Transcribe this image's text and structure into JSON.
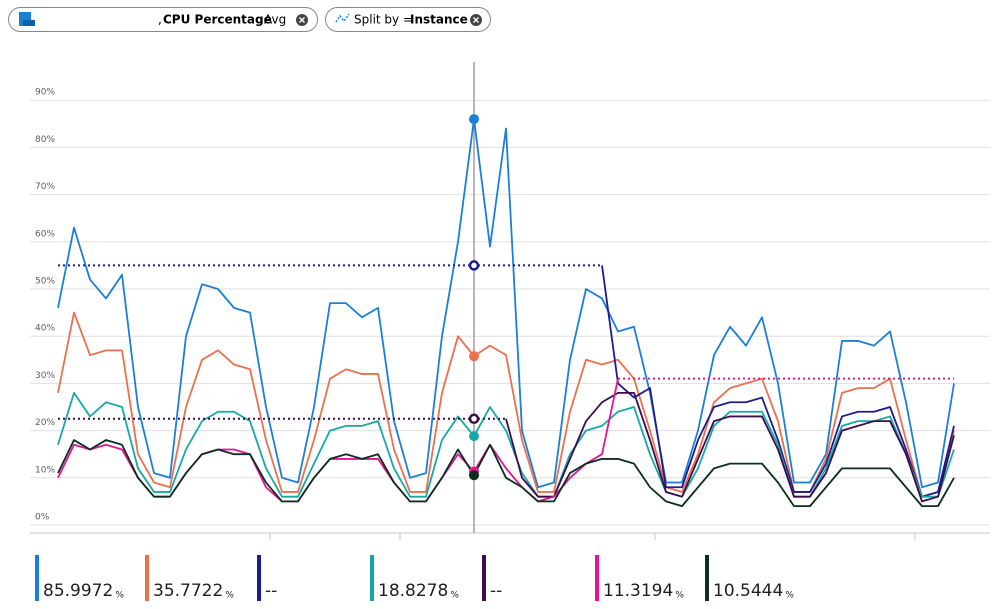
{
  "chart_data": {
    "type": "line",
    "filter_pill": {
      "prefix": ",",
      "metric": "CPU Percentage",
      "separator": ",",
      "aggregation": "Avg"
    },
    "split_pill": {
      "label": "Split by = ",
      "value": "Instance"
    },
    "ylim": [
      0,
      100
    ],
    "yticks": [
      {
        "value": 0,
        "label": "0%"
      },
      {
        "value": 10,
        "label": "10%"
      },
      {
        "value": 20,
        "label": "20%"
      },
      {
        "value": 30,
        "label": "30%"
      },
      {
        "value": 40,
        "label": "40%"
      },
      {
        "value": 50,
        "label": "50%"
      },
      {
        "value": 60,
        "label": "60%"
      },
      {
        "value": 70,
        "label": "70%"
      },
      {
        "value": 80,
        "label": "80%"
      },
      {
        "value": 90,
        "label": "90%"
      }
    ],
    "grid": true,
    "gaps": "dotted",
    "crosshair_index": 26,
    "legend_unit": "%",
    "categories": [
      null,
      null,
      null,
      null,
      null,
      null,
      null,
      null,
      null,
      null,
      null,
      null,
      null,
      null,
      null,
      null,
      null,
      null,
      null,
      null,
      null,
      null,
      null,
      null,
      null,
      null,
      null,
      null,
      null,
      null,
      null,
      null,
      null,
      null,
      null,
      null,
      null,
      null,
      null,
      null,
      null,
      null,
      null,
      null,
      null,
      null,
      null,
      null,
      null,
      null,
      null,
      null,
      null,
      null,
      null,
      null,
      null
    ],
    "series": [
      {
        "color": "#1b7fd6",
        "value_label": "85.9972",
        "values": [
          46,
          63,
          52,
          48,
          53,
          25,
          11,
          10,
          40,
          51,
          50,
          46,
          45,
          25,
          10,
          9,
          25,
          47,
          47,
          44,
          46,
          22,
          10,
          11,
          40,
          60,
          85.9972,
          59,
          84,
          20,
          8,
          9,
          35,
          50,
          48,
          41,
          42,
          28,
          9,
          9,
          20,
          36,
          42,
          38,
          44,
          30,
          9,
          9,
          15,
          39,
          39,
          38,
          41,
          26,
          8,
          9,
          30
        ]
      },
      {
        "color": "#e8714f",
        "value_label": "35.7722",
        "values": [
          28,
          45,
          36,
          37,
          37,
          15,
          9,
          8,
          25,
          35,
          37,
          34,
          33,
          18,
          7,
          7,
          18,
          31,
          33,
          32,
          32,
          16,
          7,
          7,
          28,
          40,
          35.7722,
          38,
          36,
          18,
          7,
          7,
          24,
          35,
          34,
          35,
          31,
          20,
          8,
          7,
          15,
          26,
          29,
          30,
          31,
          22,
          7,
          7,
          14,
          28,
          29,
          29,
          31,
          18,
          6,
          7,
          20
        ]
      },
      {
        "color": "#1c1c8e",
        "value_label": "--",
        "values": [
          55,
          null,
          null,
          null,
          null,
          null,
          null,
          null,
          null,
          null,
          null,
          null,
          null,
          null,
          null,
          null,
          null,
          null,
          null,
          null,
          null,
          null,
          null,
          null,
          null,
          null,
          null,
          null,
          null,
          null,
          null,
          null,
          null,
          null,
          55,
          30,
          27,
          29,
          8,
          8,
          18,
          25,
          26,
          26,
          27,
          18,
          7,
          7,
          13,
          23,
          24,
          24,
          25,
          16,
          6,
          7,
          21
        ]
      },
      {
        "color": "#16a8a8",
        "value_label": "18.8278",
        "values": [
          17,
          28,
          23,
          26,
          25,
          12,
          7,
          7,
          16,
          22,
          24,
          24,
          22,
          12,
          6,
          6,
          13,
          20,
          21,
          21,
          22,
          12,
          6,
          6,
          18,
          23,
          18.8278,
          25,
          20,
          11,
          6,
          6,
          15,
          20,
          21,
          24,
          25,
          15,
          7,
          6,
          12,
          21,
          24,
          24,
          24,
          17,
          6,
          6,
          12,
          21,
          22,
          22,
          23,
          15,
          6,
          6,
          16
        ]
      },
      {
        "color": "#3e0b4c",
        "value_label": "--",
        "values": [
          22.5,
          null,
          null,
          null,
          null,
          null,
          null,
          null,
          null,
          null,
          null,
          null,
          null,
          null,
          null,
          null,
          null,
          null,
          null,
          null,
          null,
          null,
          null,
          null,
          null,
          null,
          null,
          null,
          22.5,
          10,
          6,
          6,
          14,
          22,
          26,
          28,
          28,
          18,
          7,
          6,
          14,
          22,
          23,
          23,
          23,
          16,
          6,
          6,
          11,
          20,
          21,
          22,
          22,
          15,
          5,
          6,
          19
        ]
      },
      {
        "color": "#e0178f",
        "value_label": "11.3194",
        "values": [
          10,
          17,
          16,
          17,
          16,
          10,
          6,
          6,
          11,
          15,
          16,
          16,
          15,
          8,
          5,
          5,
          10,
          14,
          14,
          14,
          14,
          9,
          5,
          5,
          10,
          15,
          11.3194,
          17,
          12,
          8,
          5,
          6,
          10,
          13,
          15,
          31,
          null,
          null,
          null,
          null,
          null,
          null,
          null,
          null,
          null,
          null,
          null,
          null,
          null,
          null,
          null,
          null,
          null,
          null,
          null,
          null,
          31
        ]
      },
      {
        "color": "#0c2e20",
        "value_label": "10.5444",
        "values": [
          11,
          18,
          16,
          18,
          17,
          10,
          6,
          6,
          11,
          15,
          16,
          15,
          15,
          9,
          5,
          5,
          10,
          14,
          15,
          14,
          15,
          9,
          5,
          5,
          10,
          16,
          10.5444,
          17,
          10,
          8,
          5,
          5,
          11,
          13,
          14,
          14,
          13,
          8,
          5,
          4,
          8,
          12,
          13,
          13,
          13,
          9,
          4,
          4,
          8,
          12,
          12,
          12,
          12,
          8,
          4,
          4,
          10
        ]
      }
    ]
  }
}
